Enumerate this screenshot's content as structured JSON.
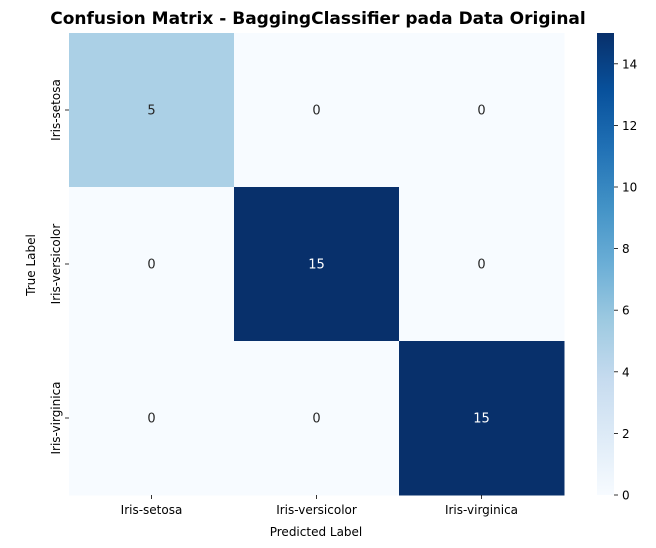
{
  "chart_data": {
    "type": "heatmap",
    "title": "Confusion Matrix - BaggingClassifier pada Data Original",
    "xlabel": "Predicted Label",
    "ylabel": "True Label",
    "x_categories": [
      "Iris-setosa",
      "Iris-versicolor",
      "Iris-virginica"
    ],
    "y_categories": [
      "Iris-setosa",
      "Iris-versicolor",
      "Iris-virginica"
    ],
    "values": [
      [
        5,
        0,
        0
      ],
      [
        0,
        15,
        0
      ],
      [
        0,
        0,
        15
      ]
    ],
    "colorbar": {
      "min": 0,
      "max": 15,
      "ticks": [
        "0",
        "2",
        "4",
        "6",
        "8",
        "10",
        "12",
        "14"
      ],
      "colormap": "Blues",
      "colors": [
        "#f7fbff",
        "#deebf7",
        "#c6dbef",
        "#9ecae1",
        "#6baed6",
        "#4292c6",
        "#2171b5",
        "#08519c",
        "#08306b"
      ]
    },
    "grid": false
  }
}
